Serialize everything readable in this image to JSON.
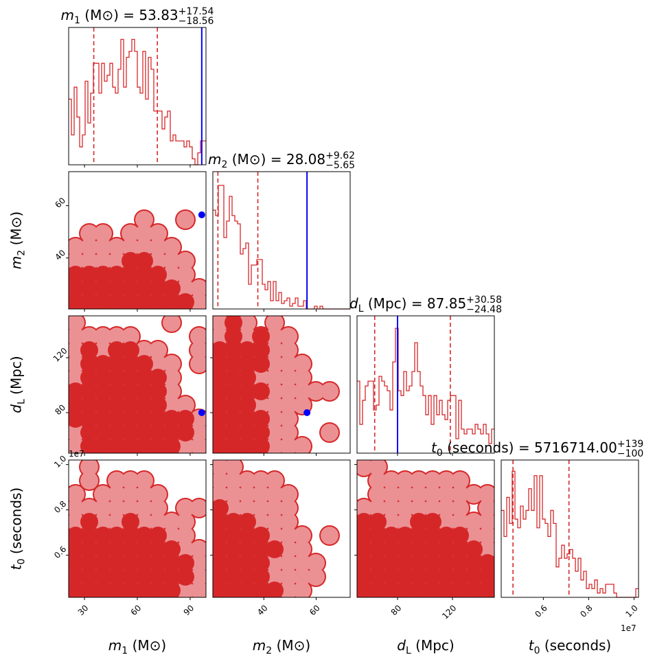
{
  "colors": {
    "contour_dark": "#d62728",
    "contour_light": "#eb9194",
    "hist": "#d62728",
    "truth": "#0000ff",
    "frame": "#000000"
  },
  "titles": [
    {
      "var": "m",
      "sub": "1",
      "unit": "(M⊙)",
      "eq": " = 53.83",
      "plus": "+17.54",
      "minus": "−18.56"
    },
    {
      "var": "m",
      "sub": "2",
      "unit": "(M⊙)",
      "eq": " = 28.08",
      "plus": "+9.62",
      "minus": "−5.65"
    },
    {
      "var": "d",
      "sub": "L",
      "unit": "(Mpc)",
      "eq": " = 87.85",
      "plus": "+30.58",
      "minus": "−24.48"
    },
    {
      "var": "t",
      "sub": "0",
      "unit": "(seconds)",
      "eq": " = 5716714.00",
      "plus": "+139",
      "minus": "−100"
    }
  ],
  "axis_labels": [
    {
      "var": "m",
      "sub": "1",
      "unit": "(M⊙)"
    },
    {
      "var": "m",
      "sub": "2",
      "unit": "(M⊙)"
    },
    {
      "var": "d",
      "sub": "L",
      "unit": "(Mpc)"
    },
    {
      "var": "t",
      "sub": "0",
      "unit": "(seconds)"
    }
  ],
  "offset_texts": {
    "t0_y": "1e7",
    "t0_x": "1e7"
  },
  "chart_data": {
    "type": "corner",
    "parameters": [
      "m1",
      "m2",
      "dL",
      "t0"
    ],
    "axes": [
      {
        "range": [
          21,
          99
        ],
        "ticks": [
          30,
          60,
          90
        ],
        "tick_labels": [
          "30",
          "60",
          "90"
        ]
      },
      {
        "range": [
          20.5,
          73
        ],
        "ticks": [
          40,
          60
        ],
        "tick_labels": [
          "40",
          "60"
        ]
      },
      {
        "range": [
          50.5,
          150.5
        ],
        "ticks": [
          80,
          120
        ],
        "tick_labels": [
          "80",
          "120"
        ]
      },
      {
        "range": [
          0.414,
          1.02
        ],
        "ticks": [
          0.6,
          0.8,
          1.0
        ],
        "tick_labels": [
          "0.6",
          "0.8",
          "1.0"
        ],
        "scale_note": "1e7"
      }
    ],
    "truths": [
      96.6,
      56.5,
      80,
      null
    ],
    "quantiles": [
      [
        35.27,
        71.37
      ],
      [
        22.43,
        37.7
      ],
      [
        63.37,
        118.43
      ],
      [
        0.466,
        0.713
      ]
    ],
    "histograms": [
      {
        "ylim": 23,
        "counts": [
          11,
          5,
          13,
          8,
          3,
          5,
          14,
          7,
          12,
          17,
          17,
          12,
          17,
          14,
          15,
          17,
          13,
          12,
          16,
          21,
          13,
          18,
          19,
          21,
          19,
          13,
          12,
          19,
          11,
          18,
          16,
          9,
          9,
          9,
          6,
          8,
          9,
          4,
          5,
          4,
          4,
          4,
          3,
          4,
          3,
          1,
          0,
          2,
          4,
          4
        ]
      },
      {
        "ylim": 50,
        "counts": [
          36,
          34,
          45,
          45,
          26,
          32,
          41,
          34,
          32,
          31,
          20,
          22,
          24,
          9,
          16,
          16,
          18,
          18,
          9,
          7,
          10,
          3,
          10,
          3,
          6,
          2,
          3,
          4,
          1,
          2,
          4,
          1,
          1,
          3,
          0,
          0,
          0,
          1,
          0,
          1,
          0,
          0,
          0,
          0,
          0,
          0,
          0,
          0,
          0,
          0
        ]
      },
      {
        "ylim": 28.6,
        "counts": [
          15,
          6,
          11,
          14,
          15,
          15,
          9,
          10,
          16,
          15,
          14,
          13,
          9,
          19,
          26,
          13,
          12,
          17,
          13,
          14,
          17,
          23,
          17,
          14,
          12,
          8,
          12,
          6,
          12,
          8,
          11,
          8,
          7,
          11,
          12,
          12,
          3,
          11,
          5,
          4,
          5,
          5,
          4,
          6,
          5,
          4,
          6,
          4,
          2,
          5
        ]
      },
      {
        "ylim": 31.6,
        "counts": [
          20,
          14,
          23,
          17,
          29,
          18,
          16,
          21,
          18,
          20,
          25,
          20,
          28,
          16,
          28,
          18,
          17,
          14,
          20,
          17,
          7,
          9,
          12,
          9,
          10,
          11,
          9,
          6,
          9,
          4,
          6,
          2,
          3,
          2,
          4,
          1,
          2,
          1,
          3,
          3,
          3,
          1,
          0,
          0,
          0,
          0,
          0,
          0,
          0,
          2
        ]
      }
    ],
    "density_levels": [
      {
        "x": "m1",
        "y": "m2",
        "grid": [
          "0000000000",
          "0000000000",
          "0000000000",
          "0000010010",
          "0110111000",
          "1111111100",
          "1111221110",
          "2222222110",
          "2222222211",
          "2222222221"
        ]
      },
      {
        "x": "m1",
        "y": "dL",
        "grid": [
          "1000000100",
          "1111100001",
          "1212211001",
          "1222221101",
          "1222222100",
          "2222222100",
          "2222222110",
          "2222222221",
          "1222222221",
          "1222222211"
        ]
      },
      {
        "x": "m2",
        "y": "dL",
        "grid": [
          "1210100000",
          "1212110000",
          "2222110000",
          "2222111000",
          "2221111000",
          "2222111110",
          "2221111000",
          "2222110000",
          "2222110010",
          "2222111000"
        ]
      },
      {
        "x": "m1",
        "y": "t0",
        "grid": [
          "0100000000",
          "0101110000",
          "1011111000",
          "1111111011",
          "1211211110",
          "2222222110",
          "2222222211",
          "2222222221",
          "2222222221",
          "2222222211"
        ]
      },
      {
        "x": "m2",
        "y": "t0",
        "grid": [
          "1100000000",
          "1111100000",
          "1111110000",
          "2111110000",
          "2221110000",
          "2222111010",
          "2222211000",
          "2222111100",
          "2222111100",
          "2222211000"
        ]
      },
      {
        "x": "dL",
        "y": "t0",
        "grid": [
          "1100000000",
          "0111111100",
          "0111111111",
          "1111111101",
          "2211221111",
          "2222222211",
          "2222222221",
          "2222222222",
          "2222222222",
          "2222222222"
        ]
      }
    ]
  }
}
